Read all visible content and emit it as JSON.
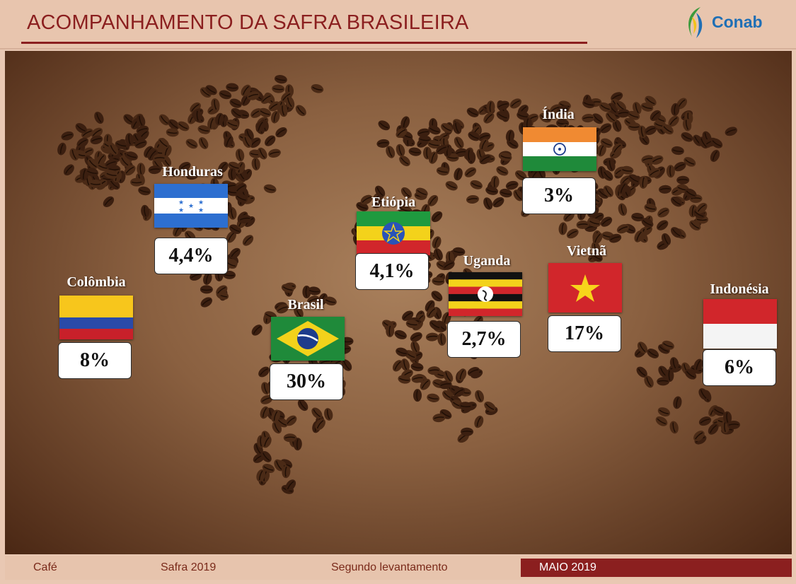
{
  "header": {
    "title": "ACOMPANHAMENTO DA SAFRA BRASILEIRA",
    "logo_text": "Conab"
  },
  "countries": {
    "honduras": {
      "name": "Honduras",
      "share": "4,4%"
    },
    "colombia": {
      "name": "Colômbia",
      "share": "8%"
    },
    "brasil": {
      "name": "Brasil",
      "share": "30%"
    },
    "etiopia": {
      "name": "Etiópia",
      "share": "4,1%"
    },
    "uganda": {
      "name": "Uganda",
      "share": "2,7%"
    },
    "india": {
      "name": "Índia",
      "share": "3%"
    },
    "vietna": {
      "name": "Vietnã",
      "share": "17%"
    },
    "indonesia": {
      "name": "Indonésia",
      "share": "6%"
    }
  },
  "footer": {
    "product": "Café",
    "season": "Safra 2019",
    "survey": "Segundo levantamento",
    "date": "MAIO 2019"
  },
  "colors": {
    "brand_red": "#8b1f1f",
    "conab_blue": "#1f6fb5",
    "conab_green": "#3c9a3c"
  }
}
